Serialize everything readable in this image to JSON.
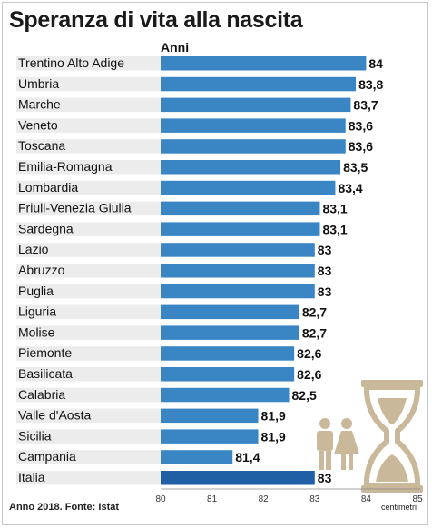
{
  "chart_data": {
    "type": "bar",
    "orientation": "horizontal",
    "title": "Speranza di vita alla nascita",
    "unit_label": "Anni",
    "categories": [
      "Trentino Alto Adige",
      "Umbria",
      "Marche",
      "Veneto",
      "Toscana",
      "Emilia-Romagna",
      "Lombardia",
      "Friuli-Venezia Giulia",
      "Sardegna",
      "Lazio",
      "Abruzzo",
      "Puglia",
      "Liguria",
      "Molise",
      "Piemonte",
      "Basilicata",
      "Calabria",
      "Valle d'Aosta",
      "Sicilia",
      "Campania",
      "Italia"
    ],
    "values": [
      84,
      83.8,
      83.7,
      83.6,
      83.6,
      83.5,
      83.4,
      83.1,
      83.1,
      83,
      83,
      83,
      82.7,
      82.7,
      82.6,
      82.6,
      82.5,
      81.9,
      81.9,
      81.4,
      83
    ],
    "value_labels": [
      "84",
      "83,8",
      "83,7",
      "83,6",
      "83,6",
      "83,5",
      "83,4",
      "83,1",
      "83,1",
      "83",
      "83",
      "83",
      "82,7",
      "82,7",
      "82,6",
      "82,6",
      "82,5",
      "81,9",
      "81,9",
      "81,4",
      "83"
    ],
    "xlim": [
      80,
      85
    ],
    "ticks": [
      "80",
      "81",
      "82",
      "83",
      "84",
      "85"
    ],
    "highlight": "Italia",
    "colors": {
      "bar": "#3a86c4",
      "highlight_bar": "#1f5fa5",
      "label_bg": "#ececec",
      "icon": "#c9b89a"
    },
    "grid": false,
    "legend": "none",
    "footer": "Anno 2018. Fonte: Istat",
    "brand": "centimetri"
  },
  "icons": [
    "hourglass-icon",
    "man-icon",
    "woman-icon"
  ]
}
